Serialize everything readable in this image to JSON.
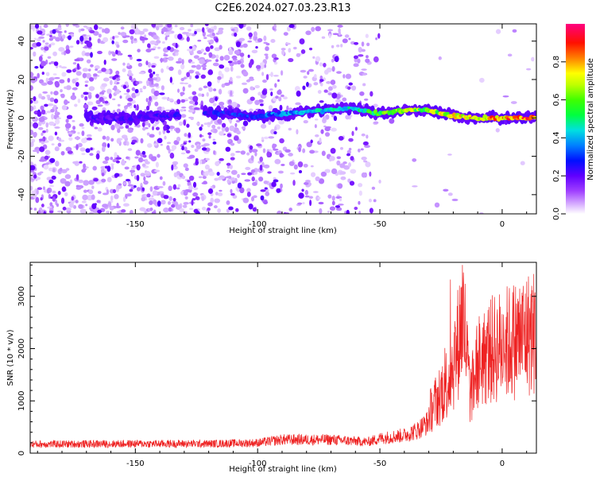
{
  "figure": {
    "title": "C2E6.2024.027.03.23.R13"
  },
  "chart_data": [
    {
      "type": "heatmap",
      "xlabel": "Height of straight line (km)",
      "ylabel": "Frequency (Hz)",
      "xlim": [
        -193,
        14
      ],
      "ylim": [
        -50,
        49
      ],
      "x_ticks": [
        -150,
        -100,
        -50,
        0
      ],
      "y_ticks": [
        -40,
        -20,
        0,
        20,
        40
      ],
      "colorbar": {
        "label": "Normalized spectral amplitude",
        "range": [
          0,
          1
        ],
        "ticks": [
          0.0,
          0.2,
          0.4,
          0.6,
          0.8
        ],
        "colormap": [
          "#ffffff",
          "#c080ff",
          "#7000ff",
          "#0000ff",
          "#00c0ff",
          "#00ff60",
          "#60ff00",
          "#ffff00",
          "#ff8000",
          "#ff0000",
          "#ff0080"
        ]
      },
      "ridge": [
        {
          "x": -170,
          "freq": 0,
          "amp": 0.25
        },
        {
          "x": -150,
          "freq": 0,
          "amp": 0.25
        },
        {
          "x": -120,
          "freq": 3,
          "amp": 0.3
        },
        {
          "x": -100,
          "freq": 1,
          "amp": 0.35
        },
        {
          "x": -80,
          "freq": 3,
          "amp": 0.45
        },
        {
          "x": -60,
          "freq": 5,
          "amp": 0.5
        },
        {
          "x": -50,
          "freq": 2,
          "amp": 0.6
        },
        {
          "x": -40,
          "freq": 4,
          "amp": 0.7
        },
        {
          "x": -30,
          "freq": 4,
          "amp": 0.7
        },
        {
          "x": -20,
          "freq": 1,
          "amp": 0.75
        },
        {
          "x": -10,
          "freq": 0,
          "amp": 0.85
        },
        {
          "x": 0,
          "freq": 0,
          "amp": 0.85
        },
        {
          "x": 12,
          "freq": 0,
          "amp": 0.9
        }
      ]
    },
    {
      "type": "line",
      "xlabel": "Height of straight line (km)",
      "ylabel": "SNR (10 * v/v)",
      "xlim": [
        -193,
        14
      ],
      "ylim": [
        0,
        3650
      ],
      "x_ticks": [
        -150,
        -100,
        -50,
        0
      ],
      "y_ticks": [
        0,
        1000,
        2000,
        3000
      ],
      "color": "#ee2222",
      "series_envelope": [
        {
          "x": -193,
          "y": 200
        },
        {
          "x": -150,
          "y": 210
        },
        {
          "x": -120,
          "y": 210
        },
        {
          "x": -100,
          "y": 230
        },
        {
          "x": -90,
          "y": 300
        },
        {
          "x": -70,
          "y": 300
        },
        {
          "x": -55,
          "y": 250
        },
        {
          "x": -50,
          "y": 330
        },
        {
          "x": -40,
          "y": 400
        },
        {
          "x": -35,
          "y": 500
        },
        {
          "x": -30,
          "y": 700
        },
        {
          "x": -26,
          "y": 1000
        },
        {
          "x": -22,
          "y": 1300
        },
        {
          "x": -19,
          "y": 1700
        },
        {
          "x": -16,
          "y": 2500
        },
        {
          "x": -13,
          "y": 1000
        },
        {
          "x": -10,
          "y": 1600
        },
        {
          "x": -5,
          "y": 1800
        },
        {
          "x": 0,
          "y": 1900
        },
        {
          "x": 5,
          "y": 2000
        },
        {
          "x": 10,
          "y": 2100
        },
        {
          "x": 14,
          "y": 2150
        }
      ]
    }
  ]
}
